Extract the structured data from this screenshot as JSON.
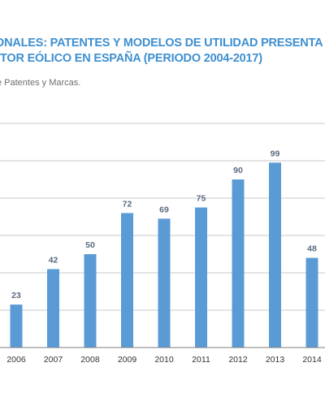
{
  "header": {
    "title_line1": "ONALES: PATENTES Y MODELOS DE UTILIDAD PRESENTA",
    "title_line2": "TOR EÓLICO EN ESPAÑA (PERIODO 2004-2017)",
    "source": "e Patentes y Marcas."
  },
  "colors": {
    "bar": "#5b9bd5",
    "title": "#3e8fd0"
  },
  "chart_data": {
    "type": "bar",
    "categories": [
      "2006",
      "2007",
      "2008",
      "2009",
      "2010",
      "2011",
      "2012",
      "2013",
      "2014"
    ],
    "values": [
      23,
      42,
      50,
      72,
      69,
      75,
      90,
      99,
      48
    ],
    "data_labels": [
      "23",
      "42",
      "50",
      "72",
      "69",
      "75",
      "90",
      "99",
      "48"
    ],
    "ylim": [
      0,
      120
    ],
    "grid": true,
    "legend": "none"
  }
}
